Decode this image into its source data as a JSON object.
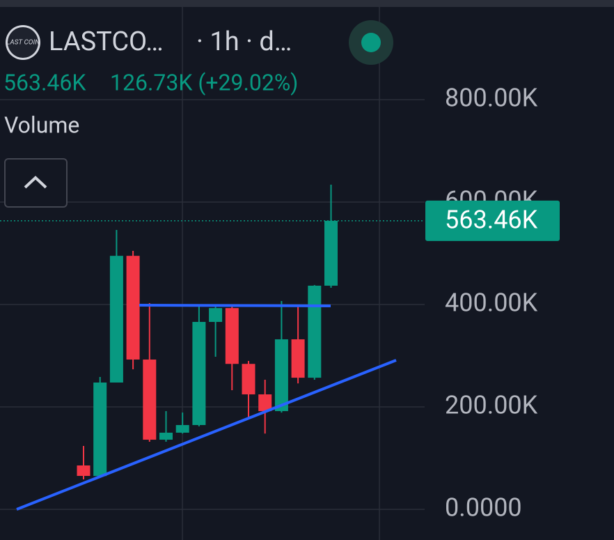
{
  "chart_data": {
    "type": "candlestick",
    "logo": "LAST COIN",
    "title": "LASTCO…",
    "interval": "· 1h · d…",
    "last_text": "563.46K",
    "change_text": "126.73K (+29.02%)",
    "indicator": "Volume",
    "last_label": "563.46K",
    "open": [
      85700,
      65000,
      247600,
      495000,
      292500,
      136000,
      149700,
      164600,
      366000,
      393000,
      284000,
      224500,
      191800,
      332000,
      257000,
      436730
    ],
    "high": [
      123800,
      258500,
      545600,
      504700,
      402700,
      191800,
      189000,
      396000,
      396000,
      396000,
      289800,
      253000,
      406800,
      396000,
      438000,
      634000
    ],
    "low": [
      58500,
      65000,
      247600,
      273500,
      132000,
      132000,
      148000,
      162000,
      298000,
      232600,
      178000,
      148000,
      189000,
      246000,
      253000,
      432600
    ],
    "close": [
      65300,
      247600,
      495000,
      292500,
      136000,
      149700,
      164600,
      366000,
      393000,
      284000,
      224500,
      191800,
      332000,
      257000,
      436730,
      563460
    ],
    "up_color": "#089981",
    "down_color": "#f23645",
    "ylim": [
      -3000,
      1000000
    ],
    "yticks": [
      {
        "value": 0,
        "label": "0.0000"
      },
      {
        "value": 200000,
        "label": "200.00K"
      },
      {
        "value": 400000,
        "label": "400.00K"
      },
      {
        "value": 600000,
        "label": "600.00K"
      },
      {
        "value": 800000,
        "label": "800.00K"
      }
    ],
    "grid": true
  }
}
